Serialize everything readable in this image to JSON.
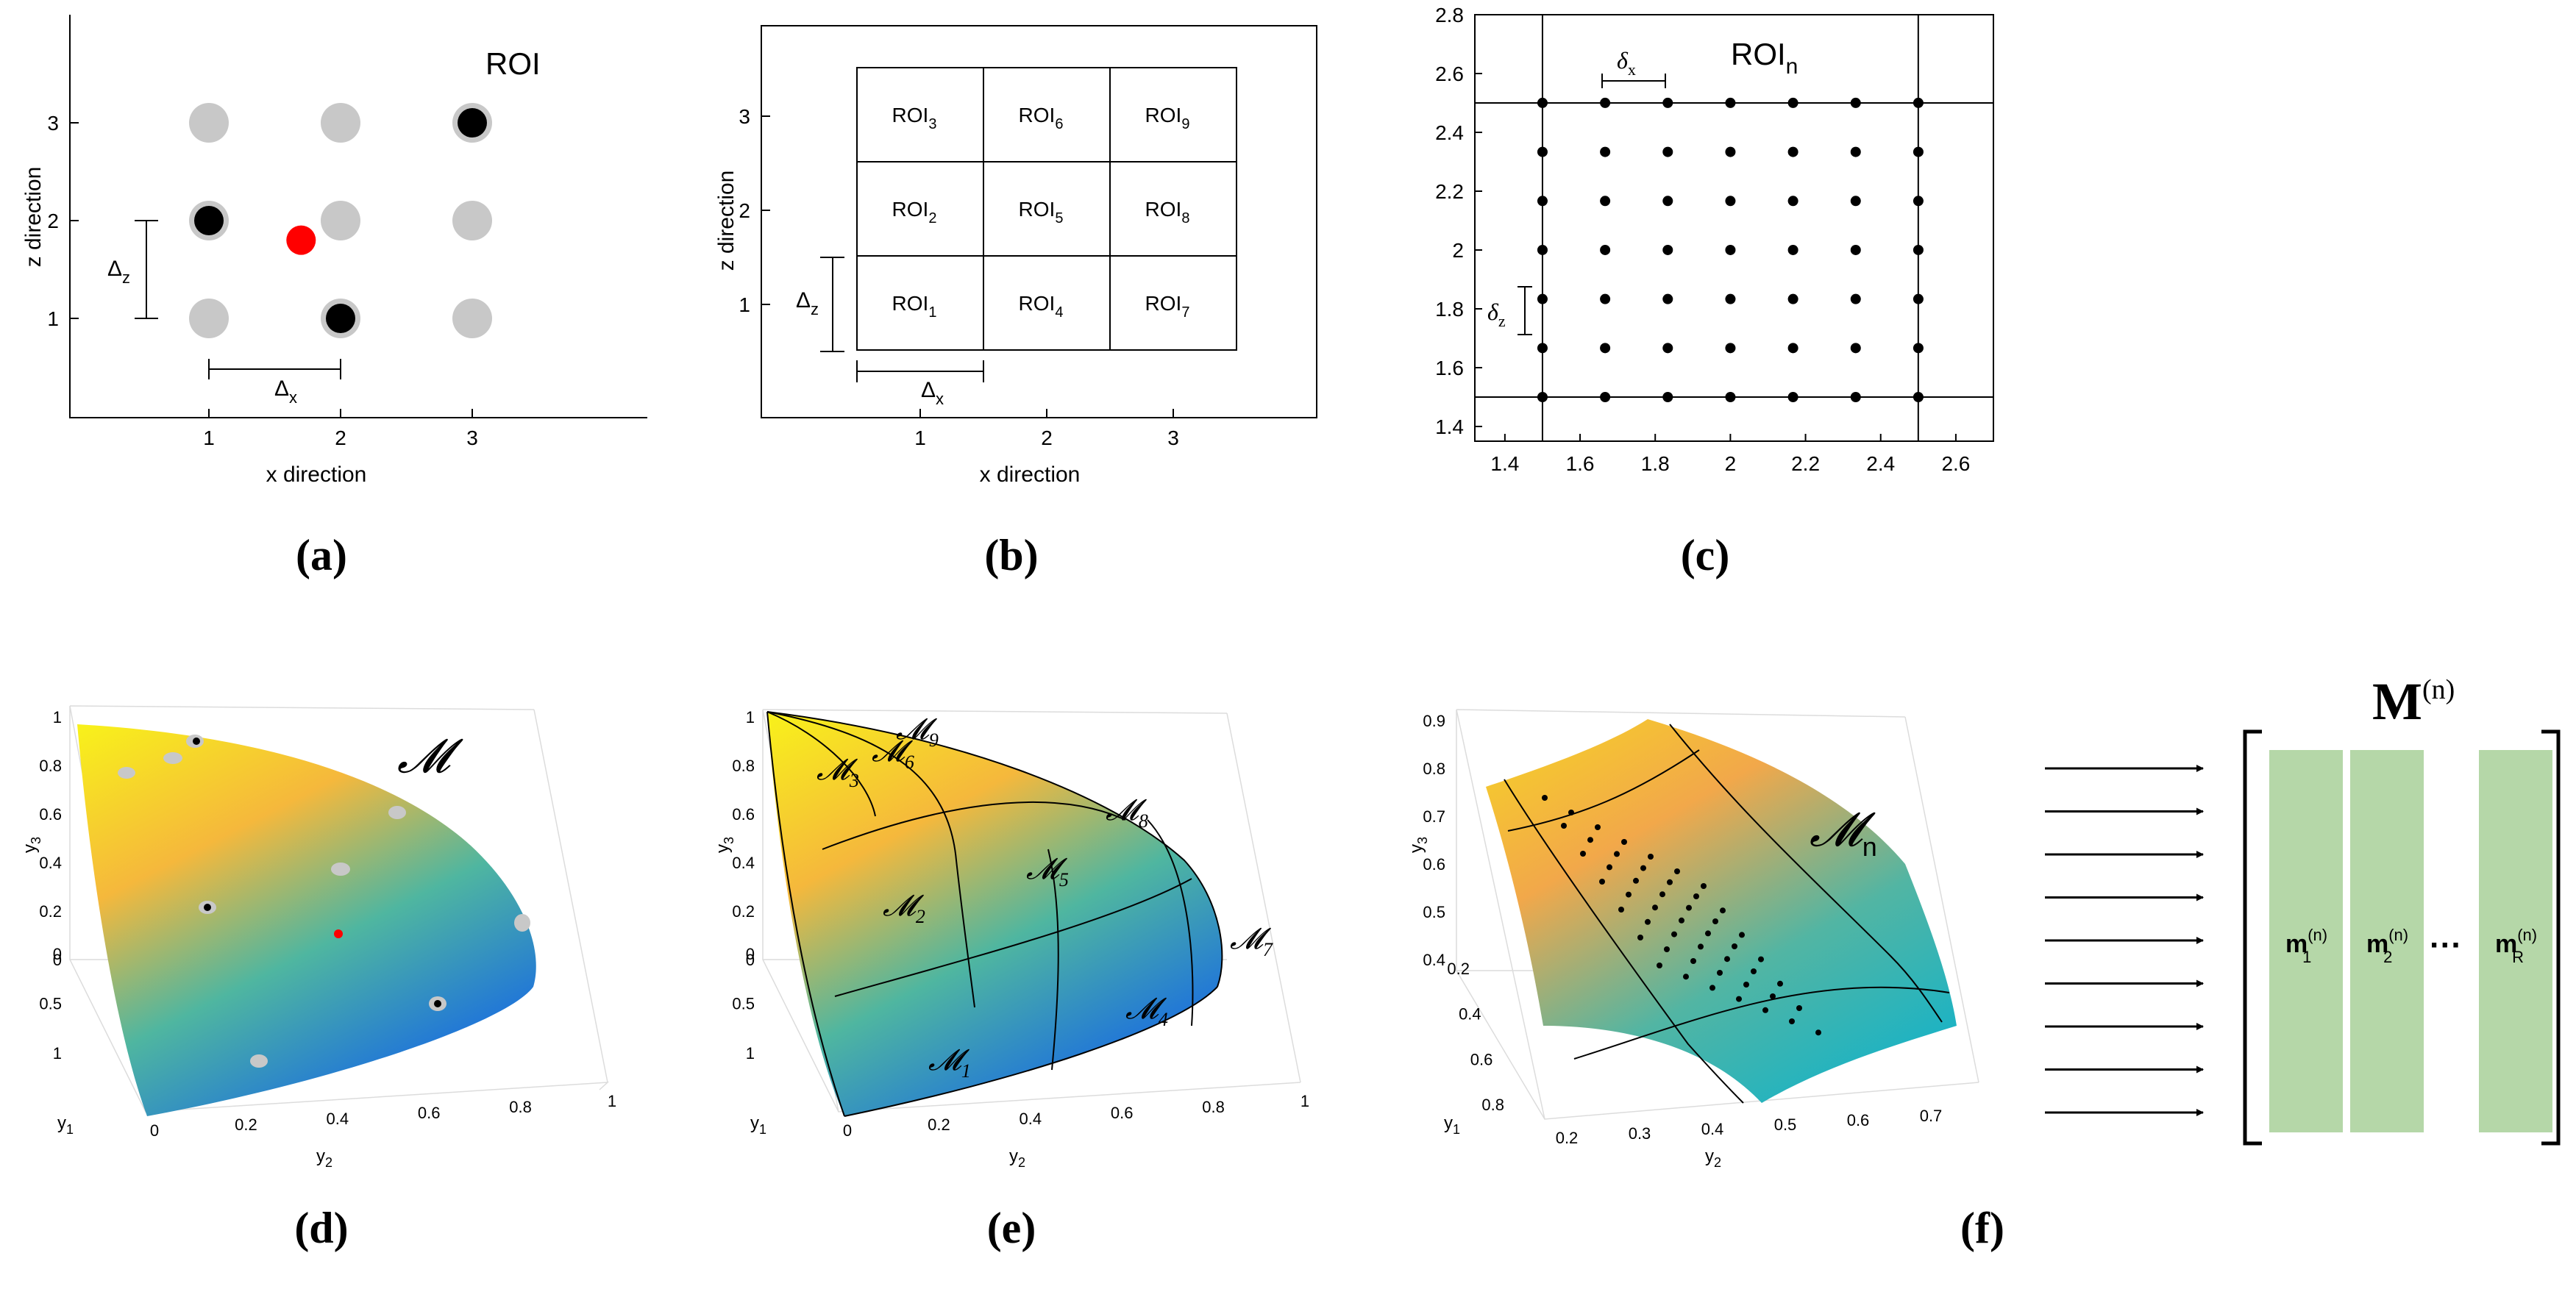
{
  "panels": {
    "a": {
      "caption": "(a)",
      "roi_label": "ROI",
      "xlabel": "x direction",
      "ylabel": "z direction",
      "xticks": [
        "1",
        "2",
        "3"
      ],
      "yticks": [
        "1",
        "2",
        "3"
      ],
      "delta_x": "Δ",
      "delta_x_sub": "x",
      "delta_z": "Δ",
      "delta_z_sub": "z",
      "grid_points": [
        {
          "x": 1,
          "z": 1,
          "state": "gray"
        },
        {
          "x": 2,
          "z": 1,
          "state": "black"
        },
        {
          "x": 3,
          "z": 1,
          "state": "gray"
        },
        {
          "x": 1,
          "z": 2,
          "state": "black"
        },
        {
          "x": 2,
          "z": 2,
          "state": "gray"
        },
        {
          "x": 3,
          "z": 2,
          "state": "gray"
        },
        {
          "x": 1,
          "z": 3,
          "state": "gray"
        },
        {
          "x": 2,
          "z": 3,
          "state": "gray"
        },
        {
          "x": 3,
          "z": 3,
          "state": "black"
        }
      ],
      "query_point": {
        "x": 1.7,
        "z": 1.8
      },
      "colors": {
        "gray": "#c8c8c8",
        "black": "#000000",
        "red": "#ff0000"
      }
    },
    "b": {
      "caption": "(b)",
      "xlabel": "x direction",
      "ylabel": "z direction",
      "xticks": [
        "1",
        "2",
        "3"
      ],
      "yticks": [
        "1",
        "2",
        "3"
      ],
      "delta_x": "Δ",
      "delta_x_sub": "x",
      "delta_z": "Δ",
      "delta_z_sub": "z",
      "cells": [
        {
          "base": "ROI",
          "sub": "3"
        },
        {
          "base": "ROI",
          "sub": "6"
        },
        {
          "base": "ROI",
          "sub": "9"
        },
        {
          "base": "ROI",
          "sub": "2"
        },
        {
          "base": "ROI",
          "sub": "5"
        },
        {
          "base": "ROI",
          "sub": "8"
        },
        {
          "base": "ROI",
          "sub": "1"
        },
        {
          "base": "ROI",
          "sub": "4"
        },
        {
          "base": "ROI",
          "sub": "7"
        }
      ]
    },
    "c": {
      "caption": "(c)",
      "title": "ROI",
      "title_sub": "n",
      "xticks": [
        "1.4",
        "1.6",
        "1.8",
        "2",
        "2.2",
        "2.4",
        "2.6"
      ],
      "yticks": [
        "1.4",
        "1.6",
        "1.8",
        "2",
        "2.2",
        "2.4",
        "2.6",
        "2.8"
      ],
      "xlim": [
        1.32,
        2.7
      ],
      "ylim": [
        1.35,
        2.8
      ],
      "bounds": {
        "x": [
          1.5,
          2.5
        ],
        "z": [
          1.5,
          2.5
        ]
      },
      "delta_x": "δ",
      "delta_x_sub": "x",
      "delta_z": "δ",
      "delta_z_sub": "z",
      "step": 0.1667
    },
    "d": {
      "caption": "(d)",
      "manifold_label": "𝓜",
      "axis_y1": "y",
      "axis_y1_sub": "1",
      "axis_y2": "y",
      "axis_y2_sub": "2",
      "axis_y3": "y",
      "axis_y3_sub": "3",
      "y3_ticks": [
        "0",
        "0.2",
        "0.4",
        "0.6",
        "0.8",
        "1"
      ],
      "y2_ticks": [
        "0",
        "0.2",
        "0.4",
        "0.6",
        "0.8",
        "1"
      ],
      "y1_ticks": [
        "1",
        "0.5",
        "0"
      ]
    },
    "e": {
      "caption": "(e)",
      "axis_y1": "y",
      "axis_y1_sub": "1",
      "axis_y2": "y",
      "axis_y2_sub": "2",
      "axis_y3": "y",
      "axis_y3_sub": "3",
      "y3_ticks": [
        "0",
        "0.2",
        "0.4",
        "0.6",
        "0.8",
        "1"
      ],
      "y2_ticks": [
        "0",
        "0.2",
        "0.4",
        "0.6",
        "0.8",
        "1"
      ],
      "y1_ticks": [
        "1",
        "0.5",
        "0"
      ],
      "regions": [
        {
          "base": "𝓜",
          "sub": "1"
        },
        {
          "base": "𝓜",
          "sub": "2"
        },
        {
          "base": "𝓜",
          "sub": "3"
        },
        {
          "base": "𝓜",
          "sub": "4"
        },
        {
          "base": "𝓜",
          "sub": "5"
        },
        {
          "base": "𝓜",
          "sub": "6"
        },
        {
          "base": "𝓜",
          "sub": "7"
        },
        {
          "base": "𝓜",
          "sub": "8"
        },
        {
          "base": "𝓜",
          "sub": "9"
        }
      ]
    },
    "f": {
      "caption": "(f)",
      "manifold_label": "𝓜",
      "manifold_sub": "n",
      "axis_y1": "y",
      "axis_y1_sub": "1",
      "axis_y2": "y",
      "axis_y2_sub": "2",
      "axis_y3": "y",
      "axis_y3_sub": "3",
      "y3_ticks": [
        "0.4",
        "0.5",
        "0.6",
        "0.7",
        "0.8",
        "0.9"
      ],
      "y2_ticks": [
        "0.2",
        "0.3",
        "0.4",
        "0.5",
        "0.6",
        "0.7"
      ],
      "y1_ticks": [
        "0.2",
        "0.4",
        "0.6",
        "0.8"
      ],
      "matrix_title": "M",
      "matrix_title_sup": "(n)",
      "columns": [
        {
          "base": "m",
          "sub": "1",
          "sup": "(n)"
        },
        {
          "base": "m",
          "sub": "2",
          "sup": "(n)"
        },
        {
          "base": "m",
          "sub": "R",
          "sup": "(n)"
        }
      ],
      "ellipsis": "···",
      "column_color": "#b5d7a8",
      "arrow_count": 9
    }
  }
}
